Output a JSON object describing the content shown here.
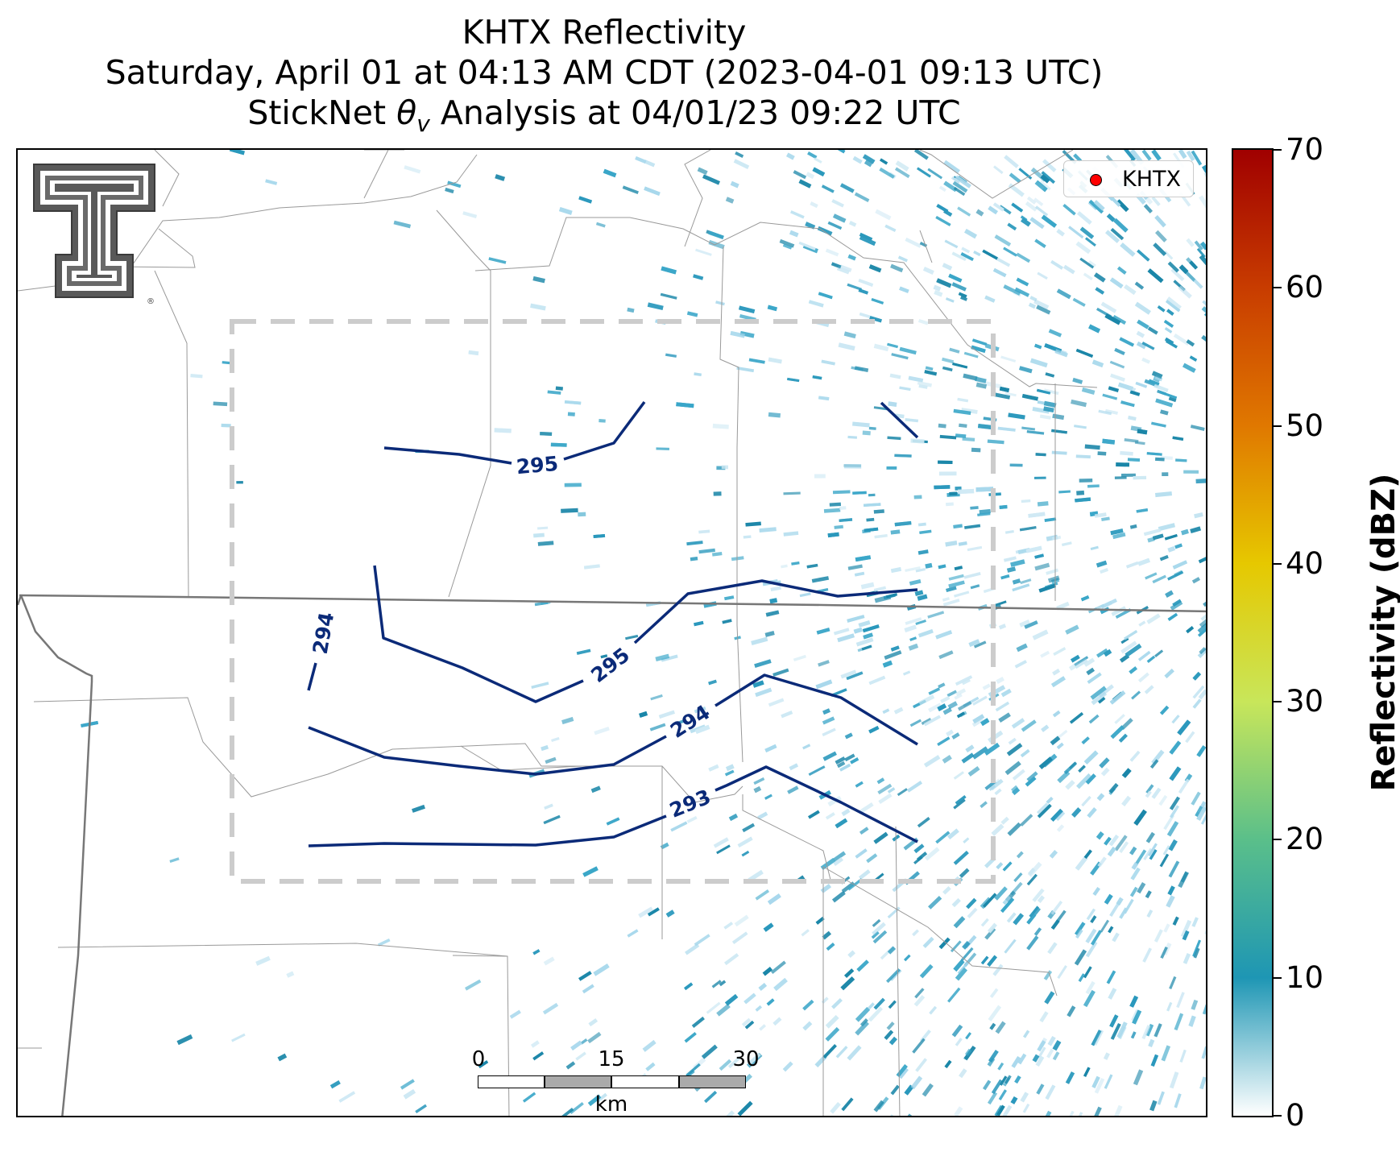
{
  "title": {
    "line1": "KHTX Reflectivity",
    "line2": "Saturday, April 01 at 04:13 AM CDT (2023-04-01 09:13 UTC)",
    "line3_prefix": "StickNet ",
    "line3_symbol": "θ",
    "line3_subscript": "v",
    "line3_suffix": " Analysis at 04/01/23 09:22 UTC"
  },
  "legend": {
    "label": "KHTX",
    "marker_color": "#ff0000"
  },
  "colorbar": {
    "label": "Reflectivity (dBZ)",
    "ticks": [
      "0",
      "10",
      "20",
      "30",
      "40",
      "50",
      "60",
      "70"
    ],
    "range": [
      0,
      70
    ],
    "colors": [
      "#ffffff",
      "#1e96b4",
      "#5abf8a",
      "#c8e65a",
      "#e6c800",
      "#e07800",
      "#c83c00",
      "#a00000"
    ]
  },
  "scale_bar": {
    "ticks": [
      "0",
      "15",
      "30"
    ],
    "unit": "km"
  },
  "contours": [
    {
      "label": "295"
    },
    {
      "label": "295"
    },
    {
      "label": "294"
    },
    {
      "label": "294"
    },
    {
      "label": "293"
    }
  ],
  "logo": {
    "name": "Texas Tech Double T",
    "mark": "®"
  },
  "colors": {
    "contour": "#0b2a78",
    "echo_light": "#a8d8ec",
    "echo_mid": "#3aa6c8",
    "echo_dark": "#1a86a8",
    "boundary": "#888888",
    "analysis_box": "#cccccc"
  }
}
